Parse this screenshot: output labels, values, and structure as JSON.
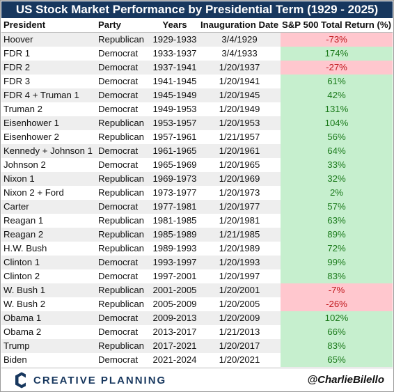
{
  "title": "US Stock Market Performance by Presidential Term (1929 - 2025)",
  "headers": [
    "President",
    "Party",
    "Years",
    "Inauguration Date",
    "S&P 500 Total Return (%)"
  ],
  "colors": {
    "title_bg": "#17375e",
    "positive_bg": "#c6efce",
    "positive_text": "#1b7a1b",
    "negative_bg": "#ffc7ce",
    "negative_text": "#c0171c"
  },
  "chart_data": {
    "type": "table",
    "title": "US Stock Market Performance by Presidential Term (1929 - 2025)",
    "columns": [
      "President",
      "Party",
      "Years",
      "Inauguration Date",
      "S&P 500 Total Return (%)"
    ],
    "rows": [
      {
        "president": "Hoover",
        "party": "Republican",
        "years": "1929-1933",
        "inauguration": "3/4/1929",
        "return_label": "-73%",
        "return": -73
      },
      {
        "president": "FDR 1",
        "party": "Democrat",
        "years": "1933-1937",
        "inauguration": "3/4/1933",
        "return_label": "174%",
        "return": 174
      },
      {
        "president": "FDR 2",
        "party": "Democrat",
        "years": "1937-1941",
        "inauguration": "1/20/1937",
        "return_label": "-27%",
        "return": -27
      },
      {
        "president": "FDR 3",
        "party": "Democrat",
        "years": "1941-1945",
        "inauguration": "1/20/1941",
        "return_label": "61%",
        "return": 61
      },
      {
        "president": "FDR 4 + Truman 1",
        "party": "Democrat",
        "years": "1945-1949",
        "inauguration": "1/20/1945",
        "return_label": "42%",
        "return": 42
      },
      {
        "president": "Truman 2",
        "party": "Democrat",
        "years": "1949-1953",
        "inauguration": "1/20/1949",
        "return_label": "131%",
        "return": 131
      },
      {
        "president": "Eisenhower 1",
        "party": "Republican",
        "years": "1953-1957",
        "inauguration": "1/20/1953",
        "return_label": "104%",
        "return": 104
      },
      {
        "president": "Eisenhower 2",
        "party": "Republican",
        "years": "1957-1961",
        "inauguration": "1/21/1957",
        "return_label": "56%",
        "return": 56
      },
      {
        "president": "Kennedy + Johnson 1",
        "party": "Democrat",
        "years": "1961-1965",
        "inauguration": "1/20/1961",
        "return_label": "64%",
        "return": 64
      },
      {
        "president": "Johnson 2",
        "party": "Democrat",
        "years": "1965-1969",
        "inauguration": "1/20/1965",
        "return_label": "33%",
        "return": 33
      },
      {
        "president": "Nixon 1",
        "party": "Republican",
        "years": "1969-1973",
        "inauguration": "1/20/1969",
        "return_label": "32%",
        "return": 32
      },
      {
        "president": "Nixon 2 + Ford",
        "party": "Republican",
        "years": "1973-1977",
        "inauguration": "1/20/1973",
        "return_label": "2%",
        "return": 2
      },
      {
        "president": "Carter",
        "party": "Democrat",
        "years": "1977-1981",
        "inauguration": "1/20/1977",
        "return_label": "57%",
        "return": 57
      },
      {
        "president": "Reagan 1",
        "party": "Republican",
        "years": "1981-1985",
        "inauguration": "1/20/1981",
        "return_label": "63%",
        "return": 63
      },
      {
        "president": "Reagan 2",
        "party": "Republican",
        "years": "1985-1989",
        "inauguration": "1/21/1985",
        "return_label": "89%",
        "return": 89
      },
      {
        "president": "H.W. Bush",
        "party": "Republican",
        "years": "1989-1993",
        "inauguration": "1/20/1989",
        "return_label": "72%",
        "return": 72
      },
      {
        "president": "Clinton 1",
        "party": "Democrat",
        "years": "1993-1997",
        "inauguration": "1/20/1993",
        "return_label": "99%",
        "return": 99
      },
      {
        "president": "Clinton 2",
        "party": "Democrat",
        "years": "1997-2001",
        "inauguration": "1/20/1997",
        "return_label": "83%",
        "return": 83
      },
      {
        "president": "W. Bush 1",
        "party": "Republican",
        "years": "2001-2005",
        "inauguration": "1/20/2001",
        "return_label": "-7%",
        "return": -7
      },
      {
        "president": "W. Bush 2",
        "party": "Republican",
        "years": "2005-2009",
        "inauguration": "1/20/2005",
        "return_label": "-26%",
        "return": -26
      },
      {
        "president": "Obama 1",
        "party": "Democrat",
        "years": "2009-2013",
        "inauguration": "1/20/2009",
        "return_label": "102%",
        "return": 102
      },
      {
        "president": "Obama 2",
        "party": "Democrat",
        "years": "2013-2017",
        "inauguration": "1/21/2013",
        "return_label": "66%",
        "return": 66
      },
      {
        "president": "Trump",
        "party": "Republican",
        "years": "2017-2021",
        "inauguration": "1/20/2017",
        "return_label": "83%",
        "return": 83
      },
      {
        "president": "Biden",
        "party": "Democrat",
        "years": "2021-2024",
        "inauguration": "1/20/2021",
        "return_label": "65%",
        "return": 65
      }
    ]
  },
  "footer": {
    "logo_text": "CREATIVE PLANNING",
    "logo_icon": "creative-planning-c-icon",
    "handle": "@CharlieBilello"
  }
}
